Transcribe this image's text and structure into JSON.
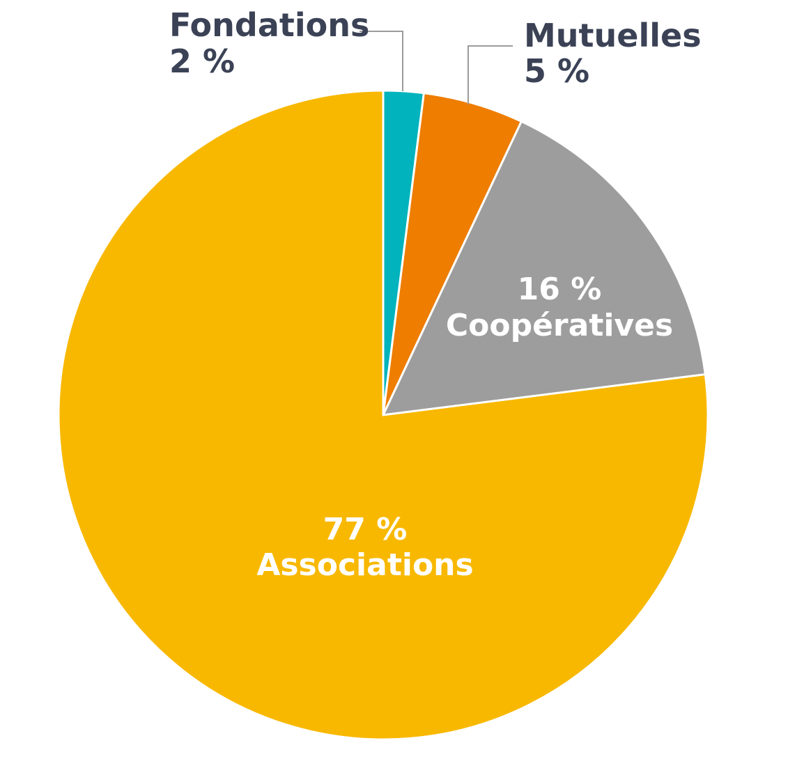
{
  "chart_data": {
    "type": "pie",
    "start_angle": "12 o'clock",
    "direction": "clockwise",
    "slices": [
      {
        "name": "Fondations",
        "value": 2,
        "label": "2 %",
        "color": "#00b3bc",
        "label_position": "outside"
      },
      {
        "name": "Mutuelles",
        "value": 5,
        "label": "5 %",
        "color": "#ee7d00",
        "label_position": "outside"
      },
      {
        "name": "Coopératives",
        "value": 16,
        "label": "16 %",
        "color": "#9d9d9d",
        "label_position": "inside"
      },
      {
        "name": "Associations",
        "value": 77,
        "label": "77 %",
        "color": "#f8b800",
        "label_position": "inside"
      }
    ]
  }
}
